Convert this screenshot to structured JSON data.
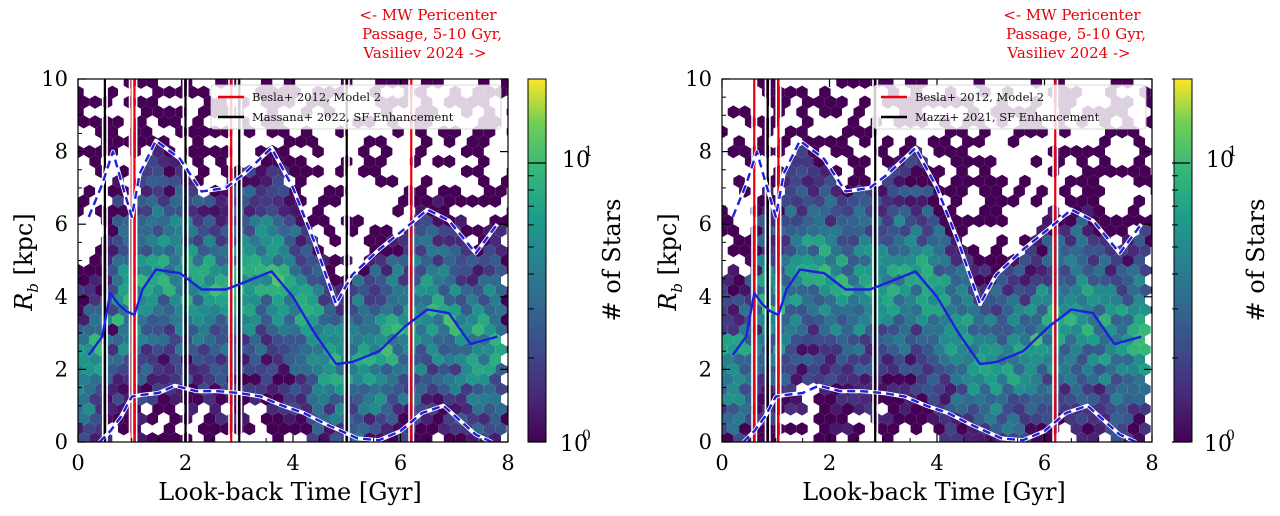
{
  "chart_data": [
    {
      "type": "hexbin-heatmap",
      "panel": "left",
      "annotation": [
        "<- MW Pericenter",
        "Passage, 5-10 Gyr,",
        "Vasiliev 2024 ->"
      ],
      "xlabel": "Look-back Time [Gyr]",
      "ylabel_main": "R",
      "ylabel_sub": "b",
      "ylabel_unit": " [kpc]",
      "xlim": [
        0,
        8
      ],
      "ylim": [
        0,
        10
      ],
      "xticks": [
        "0",
        "2",
        "4",
        "6",
        "8"
      ],
      "yticks": [
        "0",
        "2",
        "4",
        "6",
        "8",
        "10"
      ],
      "colorbar": {
        "label": "# of Stars",
        "scale": "log",
        "range": [
          1,
          20
        ],
        "ticks": [
          {
            "base": "10",
            "exp": "1",
            "value": 10
          },
          {
            "base": "10",
            "exp": "0",
            "value": 1
          }
        ]
      },
      "legend": [
        "Besla+ 2012, Model 2",
        "Massana+ 2022, SF Enhancement"
      ],
      "legend_colors": [
        "#e8000b",
        "#000000"
      ],
      "red_lines": [
        1.0,
        1.05,
        2.85,
        6.2
      ],
      "black_lines": [
        0.5,
        2.0,
        3.0,
        5.0
      ],
      "median_line": {
        "x": [
          0.2,
          0.45,
          0.6,
          0.75,
          0.9,
          1.05,
          1.2,
          1.45,
          1.9,
          2.3,
          2.75,
          3.1,
          3.6,
          4.0,
          4.4,
          4.8,
          5.1,
          5.6,
          6.1,
          6.5,
          6.9,
          7.3,
          7.8
        ],
        "y": [
          2.4,
          2.9,
          4.1,
          3.8,
          3.6,
          3.5,
          4.2,
          4.75,
          4.65,
          4.2,
          4.2,
          4.4,
          4.7,
          4.0,
          3.0,
          2.15,
          2.2,
          2.5,
          3.2,
          3.65,
          3.55,
          2.7,
          2.9
        ]
      },
      "upper_envelope": {
        "x": [
          0.2,
          0.45,
          0.65,
          0.8,
          1.0,
          1.15,
          1.45,
          1.9,
          2.3,
          2.75,
          3.1,
          3.6,
          4.0,
          4.4,
          4.8,
          5.1,
          5.6,
          6.1,
          6.5,
          6.9,
          7.4,
          7.8
        ],
        "y": [
          6.2,
          7.1,
          8.0,
          7.2,
          6.2,
          7.4,
          8.3,
          7.8,
          6.9,
          7.0,
          7.4,
          8.1,
          7.0,
          5.5,
          3.8,
          4.6,
          5.3,
          5.9,
          6.4,
          6.1,
          5.2,
          6.0
        ]
      },
      "lower_envelope": {
        "x": [
          0.4,
          0.6,
          0.8,
          1.0,
          1.2,
          1.5,
          1.8,
          2.2,
          2.6,
          3.0,
          3.4,
          3.8,
          4.2,
          4.6,
          4.9,
          5.2,
          5.6,
          6.0,
          6.4,
          6.8,
          7.1,
          7.4,
          7.7
        ],
        "y": [
          0.0,
          0.3,
          0.7,
          1.25,
          1.3,
          1.35,
          1.55,
          1.4,
          1.4,
          1.35,
          1.25,
          1.0,
          0.8,
          0.5,
          0.3,
          0.1,
          0.05,
          0.3,
          0.8,
          1.0,
          0.6,
          0.2,
          0.0
        ]
      }
    },
    {
      "type": "hexbin-heatmap",
      "panel": "right",
      "annotation": [
        "<- MW Pericenter",
        "Passage, 5-10 Gyr,",
        "Vasiliev 2024 ->"
      ],
      "xlabel": "Look-back Time [Gyr]",
      "ylabel_main": "R",
      "ylabel_sub": "b",
      "ylabel_unit": " [kpc]",
      "xlim": [
        0,
        8
      ],
      "ylim": [
        0,
        10
      ],
      "xticks": [
        "0",
        "2",
        "4",
        "6",
        "8"
      ],
      "yticks": [
        "0",
        "2",
        "4",
        "6",
        "8",
        "10"
      ],
      "colorbar": {
        "label": "# of Stars",
        "scale": "log",
        "range": [
          1,
          20
        ],
        "ticks": [
          {
            "base": "10",
            "exp": "1",
            "value": 10
          },
          {
            "base": "10",
            "exp": "0",
            "value": 1
          }
        ]
      },
      "legend": [
        "Besla+ 2012, Model 2",
        "Mazzi+ 2021, SF Enhancement"
      ],
      "legend_colors": [
        "#e8000b",
        "#000000"
      ],
      "red_lines": [
        0.6,
        1.05,
        6.2
      ],
      "black_lines": [
        0.85,
        2.85
      ],
      "median_line": {
        "x": [
          0.2,
          0.45,
          0.6,
          0.75,
          0.9,
          1.05,
          1.2,
          1.45,
          1.9,
          2.3,
          2.75,
          3.1,
          3.6,
          4.0,
          4.4,
          4.8,
          5.1,
          5.6,
          6.1,
          6.5,
          6.9,
          7.3,
          7.8
        ],
        "y": [
          2.4,
          2.9,
          4.1,
          3.8,
          3.6,
          3.5,
          4.2,
          4.75,
          4.65,
          4.2,
          4.2,
          4.4,
          4.7,
          4.0,
          3.0,
          2.15,
          2.2,
          2.5,
          3.2,
          3.65,
          3.55,
          2.7,
          2.9
        ]
      },
      "upper_envelope": {
        "x": [
          0.2,
          0.45,
          0.65,
          0.8,
          1.0,
          1.15,
          1.45,
          1.9,
          2.3,
          2.75,
          3.1,
          3.6,
          4.0,
          4.4,
          4.8,
          5.1,
          5.6,
          6.1,
          6.5,
          6.9,
          7.4,
          7.8
        ],
        "y": [
          6.2,
          7.1,
          8.0,
          7.2,
          6.2,
          7.4,
          8.3,
          7.8,
          6.9,
          7.0,
          7.4,
          8.1,
          7.0,
          5.5,
          3.8,
          4.6,
          5.3,
          5.9,
          6.4,
          6.1,
          5.2,
          6.0
        ]
      },
      "lower_envelope": {
        "x": [
          0.4,
          0.6,
          0.8,
          1.0,
          1.2,
          1.5,
          1.8,
          2.2,
          2.6,
          3.0,
          3.4,
          3.8,
          4.2,
          4.6,
          4.9,
          5.2,
          5.6,
          6.0,
          6.4,
          6.8,
          7.1,
          7.4,
          7.7
        ],
        "y": [
          0.0,
          0.3,
          0.7,
          1.25,
          1.3,
          1.35,
          1.55,
          1.4,
          1.4,
          1.35,
          1.25,
          1.0,
          0.8,
          0.5,
          0.3,
          0.1,
          0.05,
          0.3,
          0.8,
          1.0,
          0.6,
          0.2,
          0.0
        ]
      }
    }
  ],
  "colors": {
    "red": "#e8000b",
    "blue": "#1f1fdc",
    "black": "#000000"
  }
}
